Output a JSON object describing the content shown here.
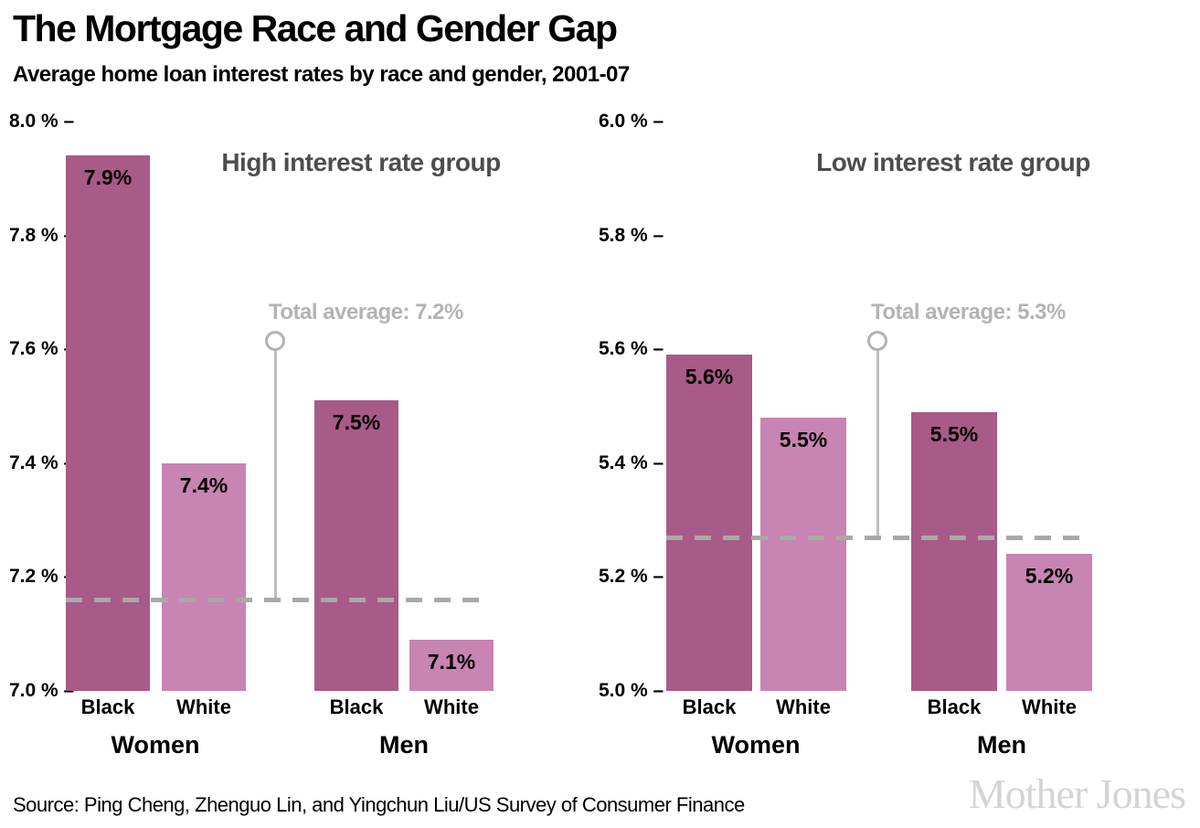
{
  "header": {
    "title": "The Mortgage Race and Gender Gap",
    "subtitle": "Average home loan interest rates by race and gender, 2001-07"
  },
  "footer": {
    "source": "Source: Ping Cheng, Zhenguo Lin, and Yingchun Liu/US Survey of Consumer Finance",
    "logo": "Mother Jones"
  },
  "colors": {
    "bar_dark": "#a85a88",
    "bar_light": "#c884b2",
    "chart_title": "#4d4d4d",
    "annotation": "#b3b3b3",
    "stem": "#bdbdbd",
    "dashed_line": "#a9a9a9",
    "logo": "#d4d4d4"
  },
  "chart_data": [
    {
      "type": "bar",
      "title": "High interest rate group",
      "groups": [
        "Women",
        "Men"
      ],
      "categories": [
        "Black",
        "White",
        "Black",
        "White"
      ],
      "group_of_bar": [
        "Women",
        "Women",
        "Men",
        "Men"
      ],
      "values": [
        7.9,
        7.4,
        7.5,
        7.1
      ],
      "plot_values": [
        7.94,
        7.4,
        7.51,
        7.09
      ],
      "value_labels": [
        "7.9%",
        "7.4%",
        "7.5%",
        "7.1%"
      ],
      "average": {
        "label": "Total average: 7.2%",
        "value": 7.16
      },
      "ylim": [
        7.0,
        8.0
      ],
      "yticks": [
        7.0,
        7.2,
        7.4,
        7.6,
        7.8,
        8.0
      ],
      "ytick_display": [
        "7.0 % –",
        "7.2 % –",
        "7.4 % –",
        "7.6 % –",
        "7.8 % –",
        "8.0 % –"
      ],
      "unit": "%",
      "grid": false,
      "legend": "none"
    },
    {
      "type": "bar",
      "title": "Low interest rate group",
      "groups": [
        "Women",
        "Men"
      ],
      "categories": [
        "Black",
        "White",
        "Black",
        "White"
      ],
      "group_of_bar": [
        "Women",
        "Women",
        "Men",
        "Men"
      ],
      "values": [
        5.6,
        5.5,
        5.5,
        5.2
      ],
      "plot_values": [
        5.59,
        5.48,
        5.49,
        5.24
      ],
      "value_labels": [
        "5.6%",
        "5.5%",
        "5.5%",
        "5.2%"
      ],
      "average": {
        "label": "Total average: 5.3%",
        "value": 5.27
      },
      "ylim": [
        5.0,
        6.0
      ],
      "yticks": [
        5.0,
        5.2,
        5.4,
        5.6,
        5.8,
        6.0
      ],
      "ytick_display": [
        "5.0 % –",
        "5.2 % –",
        "5.4 % –",
        "5.6 % –",
        "5.8 % –",
        "6.0 % –"
      ],
      "unit": "%",
      "grid": false,
      "legend": "none"
    }
  ]
}
